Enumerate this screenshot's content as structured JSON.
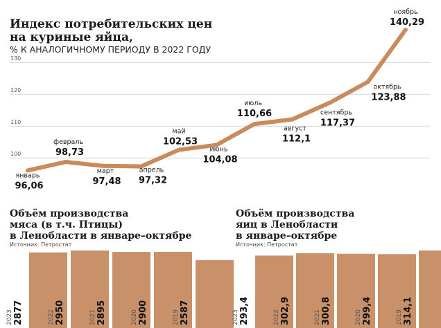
{
  "chart_data": [
    {
      "type": "line",
      "title": [
        "Индекс потребительских цен",
        "на куриные яйца,"
      ],
      "subtitle": "% К АНАЛОГИЧНОМУ ПЕРИОДУ В 2022 ГОДУ",
      "categories": [
        "январь",
        "февраль",
        "март",
        "апрель",
        "май",
        "июнь",
        "июль",
        "август",
        "сентябрь",
        "октябрь",
        "ноябрь"
      ],
      "values": [
        96.06,
        98.73,
        97.48,
        97.32,
        102.53,
        104.08,
        110.66,
        112.1,
        117.37,
        123.88,
        140.29
      ],
      "value_labels": [
        "96,06",
        "98,73",
        "97,48",
        "97,32",
        "102,53",
        "104,08",
        "110,66",
        "112,1",
        "117,37",
        "123,88",
        "140,29"
      ],
      "color": "#c98a5e",
      "ylim": [
        92,
        142
      ],
      "yticks": [
        100,
        110,
        120,
        130
      ],
      "grid": true
    },
    {
      "type": "bar",
      "title": [
        "Объём производства",
        "мяса (в т.ч. Птицы)",
        "в Ленобласти в январе–октябре"
      ],
      "source": "Источник: Петростат",
      "categories": [
        "2023",
        "2022",
        "2021",
        "2020",
        "2019"
      ],
      "values": [
        2877,
        2950,
        2895,
        2900,
        2587
      ],
      "color": "#c8916a"
    },
    {
      "type": "bar",
      "title": [
        "Объём производства",
        "яиц в Ленобласти",
        "в январе–октябре"
      ],
      "source": "Источник: Петростат",
      "categories": [
        "2023",
        "2022",
        "2021",
        "2020",
        "2019"
      ],
      "values": [
        293.4,
        302.9,
        300.8,
        299.4,
        314.1
      ],
      "value_labels": [
        "293,4",
        "302,9",
        "300,8",
        "299,4",
        "314,1"
      ],
      "color": "#c8916a"
    }
  ]
}
